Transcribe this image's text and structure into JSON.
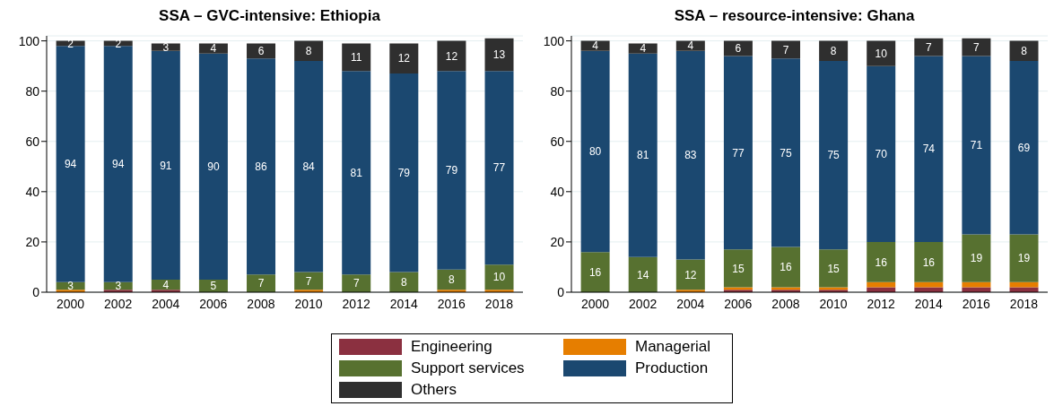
{
  "chart_data": [
    {
      "type": "bar",
      "title": "SSA – GVC-intensive: Ethiopia",
      "stacked": true,
      "grid": "y",
      "legend": "bottom",
      "categories": [
        "2000",
        "2002",
        "2004",
        "2006",
        "2008",
        "2010",
        "2012",
        "2014",
        "2016",
        "2018"
      ],
      "ylim": [
        0,
        102
      ],
      "yticks": [
        0,
        20,
        40,
        60,
        80,
        100
      ],
      "series": [
        {
          "name": "Engineering",
          "color": "#8b3040",
          "values": [
            0,
            1,
            1,
            0,
            0,
            0,
            0,
            0,
            0,
            0
          ],
          "value_labels": [
            null,
            null,
            null,
            null,
            null,
            null,
            null,
            null,
            null,
            null
          ]
        },
        {
          "name": "Managerial",
          "color": "#e67e00",
          "values": [
            1,
            0,
            0,
            0,
            0,
            1,
            0,
            0,
            1,
            1
          ],
          "value_labels": [
            null,
            null,
            null,
            null,
            null,
            null,
            null,
            null,
            null,
            null
          ]
        },
        {
          "name": "Support services",
          "color": "#577130",
          "values": [
            3,
            3,
            4,
            5,
            7,
            7,
            7,
            8,
            8,
            10
          ],
          "value_labels": [
            "3",
            "3",
            "4",
            "5",
            "7",
            "7",
            "7",
            "8",
            "8",
            "10"
          ]
        },
        {
          "name": "Production",
          "color": "#1b4870",
          "values": [
            94,
            94,
            91,
            90,
            86,
            84,
            81,
            79,
            79,
            77
          ],
          "value_labels": [
            "94",
            "94",
            "91",
            "90",
            "86",
            "84",
            "81",
            "79",
            "79",
            "77"
          ]
        },
        {
          "name": "Others",
          "color": "#2f2f2f",
          "values": [
            2,
            2,
            3,
            4,
            6,
            8,
            11,
            12,
            12,
            13
          ],
          "value_labels": [
            "2",
            "2",
            "3",
            "4",
            "6",
            "8",
            "11",
            "12",
            "12",
            "13"
          ]
        }
      ]
    },
    {
      "type": "bar",
      "title": "SSA – resource-intensive: Ghana",
      "stacked": true,
      "grid": "y",
      "categories": [
        "2000",
        "2002",
        "2004",
        "2006",
        "2008",
        "2010",
        "2012",
        "2014",
        "2016",
        "2018"
      ],
      "ylim": [
        0,
        102
      ],
      "yticks": [
        0,
        20,
        40,
        60,
        80,
        100
      ],
      "series": [
        {
          "color": "#8b3040",
          "values": [
            0,
            0,
            0,
            1,
            1,
            1,
            2,
            2,
            2,
            2
          ],
          "value_labels": [
            null,
            null,
            null,
            null,
            null,
            null,
            null,
            null,
            null,
            null
          ]
        },
        {
          "color": "#e67e00",
          "values": [
            0,
            0,
            1,
            1,
            1,
            1,
            2,
            2,
            2,
            2
          ],
          "value_labels": [
            null,
            null,
            null,
            null,
            null,
            null,
            null,
            null,
            null,
            null
          ]
        },
        {
          "color": "#577130",
          "values": [
            16,
            14,
            12,
            15,
            16,
            15,
            16,
            16,
            19,
            19
          ],
          "value_labels": [
            "16",
            "14",
            "12",
            "15",
            "16",
            "15",
            "16",
            "16",
            "19",
            "19"
          ]
        },
        {
          "color": "#1b4870",
          "values": [
            80,
            81,
            83,
            77,
            75,
            75,
            70,
            74,
            71,
            69
          ],
          "value_labels": [
            "80",
            "81",
            "83",
            "77",
            "75",
            "75",
            "70",
            "74",
            "71",
            "69"
          ]
        },
        {
          "color": "#2f2f2f",
          "values": [
            4,
            4,
            4,
            6,
            7,
            8,
            10,
            7,
            7,
            8
          ],
          "value_labels": [
            "4",
            "4",
            "4",
            "6",
            "7",
            "8",
            "10",
            "7",
            "7",
            "8"
          ]
        }
      ]
    }
  ]
}
